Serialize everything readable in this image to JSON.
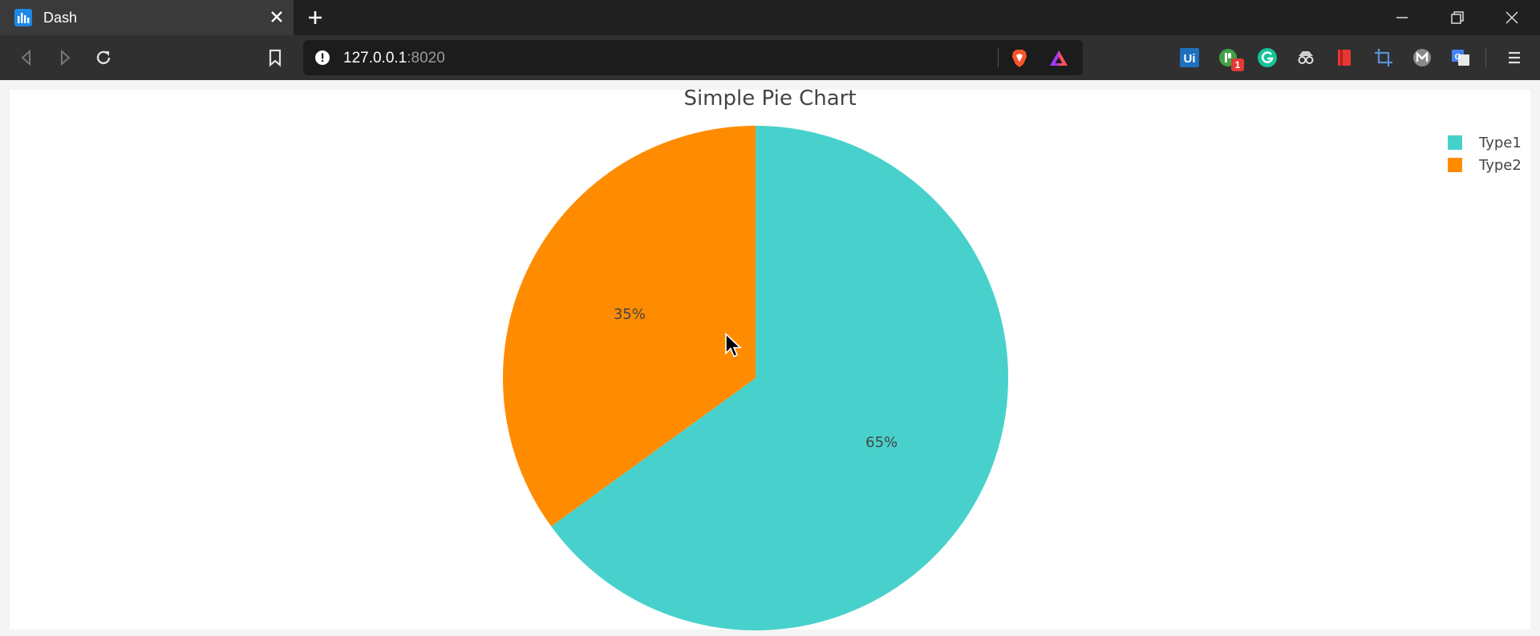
{
  "browser": {
    "tab_title": "Dash",
    "url_host": "127.0.0.1",
    "url_port": ":8020",
    "extensions": [
      {
        "name": "uipath-icon",
        "label": "Ui"
      },
      {
        "name": "badge-extension-icon",
        "badge": "1"
      },
      {
        "name": "grammarly-icon",
        "label": "G"
      },
      {
        "name": "spy-icon"
      },
      {
        "name": "bookmark-red-icon"
      },
      {
        "name": "crop-icon"
      },
      {
        "name": "m-icon",
        "label": "M"
      },
      {
        "name": "translate-icon"
      }
    ]
  },
  "chart_data": {
    "type": "pie",
    "title": "Simple Pie Chart",
    "labels": [
      "Type1",
      "Type2"
    ],
    "values": [
      65,
      35
    ],
    "text_labels": [
      "65%",
      "35%"
    ],
    "colors": [
      "#48d1cc",
      "#ff8c00"
    ],
    "legend_position": "top-right",
    "direction": "clockwise",
    "start_angle": "12 o'clock"
  }
}
